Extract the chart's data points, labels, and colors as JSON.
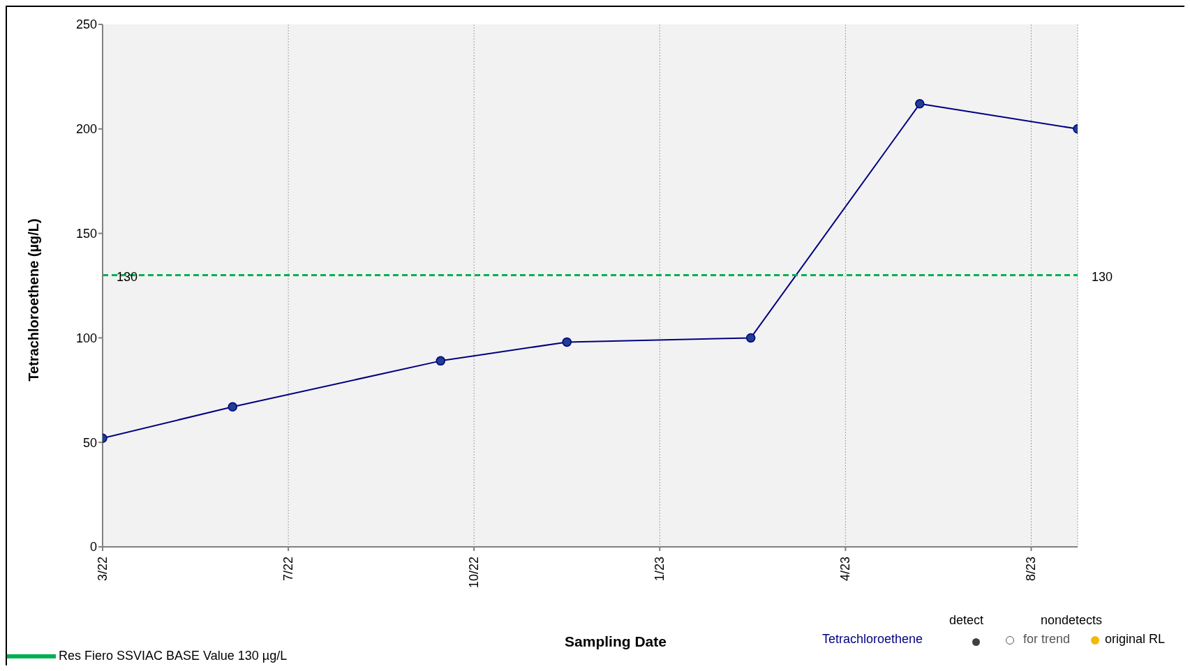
{
  "chart_data": {
    "type": "line",
    "xlabel": "Sampling Date",
    "ylabel": "Tetrachloroethene (µg/L)",
    "xlim": [
      "2022-03-25",
      "2023-09-01"
    ],
    "xticks": [
      {
        "value": "2022-03-25",
        "label": "3/22"
      },
      {
        "value": "2022-07-03",
        "label": "7/22"
      },
      {
        "value": "2022-10-11",
        "label": "10/22"
      },
      {
        "value": "2023-01-19",
        "label": "1/23"
      },
      {
        "value": "2023-04-29",
        "label": "4/23"
      },
      {
        "value": "2023-08-07",
        "label": "8/23"
      }
    ],
    "ylim": [
      0,
      250
    ],
    "yticks": [
      0,
      50,
      100,
      150,
      200,
      250
    ],
    "grid": "x",
    "marker": "circle",
    "line_style": "solid",
    "legend": "bottom",
    "series": [
      {
        "name": "Tetrachloroethene",
        "color": "#000080",
        "x": [
          "2022-03-25",
          "2022-06-03",
          "2022-09-23",
          "2022-11-30",
          "2023-03-09",
          "2023-06-08",
          "2023-09-01"
        ],
        "values": [
          52,
          67,
          89,
          98,
          100,
          212,
          200
        ]
      },
      {
        "name": "Res Fiero SSVIAC BASE Value 130 µg/L",
        "color": "#00b050",
        "marker": "none",
        "line_style": "dashed",
        "x": [
          "2022-03-25",
          "2023-09-01"
        ],
        "values": [
          130,
          130
        ]
      }
    ],
    "annotations": [
      {
        "text": "130",
        "x": "2022-03-25",
        "y": 130
      },
      {
        "text": "130",
        "x": "2023-09-01",
        "y": 130
      },
      "detect",
      "nondetects",
      "for trend",
      "original RL"
    ]
  }
}
